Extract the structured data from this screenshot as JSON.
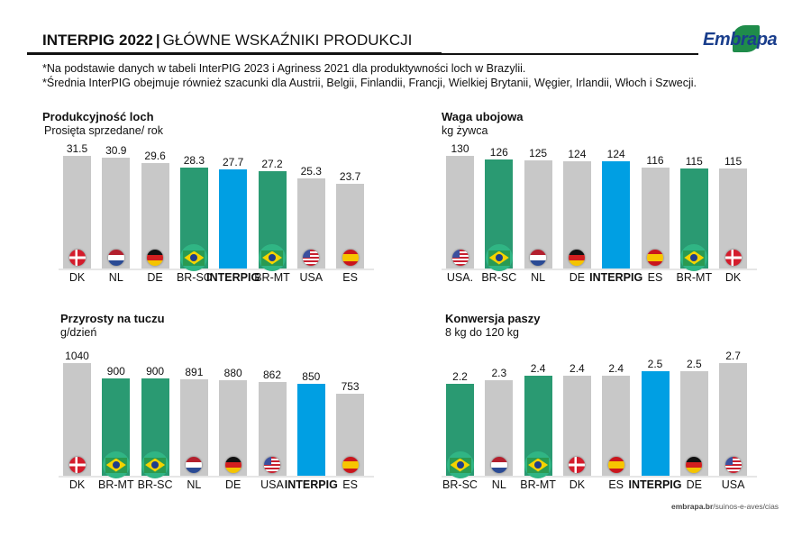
{
  "header": {
    "title_bold": "INTERPIG 2022",
    "separator": "|",
    "title": "GŁÓWNE WSKAŹNIKI PRODUKCJI"
  },
  "logo": {
    "text": "Embrapa"
  },
  "notes": [
    "*Na podstawie danych w tabeli InterPIG 2023 i Agriness 2021 dla produktywności loch w Brazylii.",
    "*Średnia InterPIG obejmuje również szacunki dla Austrii, Belgii, Finlandii, Francji, Wielkiej Brytanii, Węgier, Irlandii, Włoch i Szwecji."
  ],
  "colors": {
    "other": "#c8c8c8",
    "brazil": "#2a9a72",
    "interpig": "#009fe3",
    "brazil_halo": "#30b584"
  },
  "chart_data": [
    {
      "type": "bar",
      "title": "Produkcyjność loch",
      "subtitle": "Prosięta sprzedane/ rok",
      "categories": [
        "DK",
        "NL",
        "DE",
        "BR-SC",
        "INTERPIG",
        "BR-MT",
        "USA",
        "ES"
      ],
      "flags": [
        "DK",
        "NL",
        "DE",
        "BR",
        "",
        "BR",
        "USA",
        "ES"
      ],
      "values": [
        31.5,
        30.9,
        29.6,
        28.3,
        27.7,
        27.2,
        25.3,
        23.7
      ],
      "labels": [
        "31.5",
        "30.9",
        "29.6",
        "28.3",
        "27.7",
        "27.2",
        "25.3",
        "23.7"
      ]
    },
    {
      "type": "bar",
      "title": "Waga ubojowa",
      "subtitle": "kg żywca",
      "categories": [
        "USA.",
        "BR-SC",
        "NL",
        "DE",
        "INTERPIG",
        "ES",
        "BR-MT",
        "DK"
      ],
      "flags": [
        "USA",
        "BR",
        "NL",
        "DE",
        "",
        "ES",
        "BR",
        "DK"
      ],
      "values": [
        130,
        126,
        125,
        124,
        124,
        116,
        115,
        115
      ],
      "labels": [
        "130",
        "126",
        "125",
        "124",
        "124",
        "116",
        "115",
        "115"
      ]
    },
    {
      "type": "bar",
      "title": "Przyrosty na tuczu",
      "subtitle": "g/dzień",
      "categories": [
        "DK",
        "BR-MT",
        "BR-SC",
        "NL",
        "DE",
        "USA",
        "INTERPIG",
        "ES"
      ],
      "flags": [
        "DK",
        "BR",
        "BR",
        "NL",
        "DE",
        "USA",
        "",
        "ES"
      ],
      "values": [
        1040,
        900,
        900,
        891,
        880,
        862,
        850,
        753
      ],
      "labels": [
        "1040",
        "900",
        "900",
        "891",
        "880",
        "862",
        "850",
        "753"
      ]
    },
    {
      "type": "bar",
      "title": "Konwersja paszy",
      "subtitle": "8 kg do 120 kg",
      "categories": [
        "BR-SC",
        "NL",
        "BR-MT",
        "DK",
        "ES",
        "INTERPIG",
        "DE",
        "USA"
      ],
      "flags": [
        "BR",
        "NL",
        "BR",
        "DK",
        "ES",
        "",
        "DE",
        "USA"
      ],
      "values": [
        2.2,
        2.3,
        2.4,
        2.4,
        2.4,
        2.5,
        2.5,
        2.7
      ],
      "labels": [
        "2.2",
        "2.3",
        "2.4",
        "2.4",
        "2.4",
        "2.5",
        "2.5",
        "2.7"
      ]
    }
  ],
  "footer": {
    "domain": "embrapa.br",
    "path": "/suinos-e-aves/cias"
  }
}
